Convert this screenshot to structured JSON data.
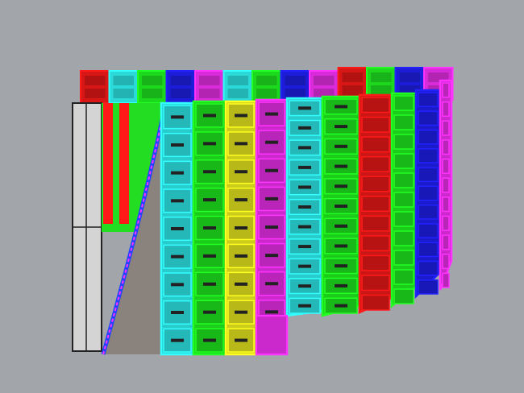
{
  "viewport": {
    "background": "#a2a6aa",
    "panel_colors": {
      "red": "#ff1a1a",
      "cyan": "#33ffff",
      "green": "#22ff22",
      "blue": "#2222ff",
      "magenta": "#ff33ff",
      "yellow": "#ffff22",
      "gray": "#d4d4d4",
      "surface": "#8a827c"
    },
    "back_row_colors": [
      "red",
      "cyan",
      "green",
      "blue",
      "magenta",
      "cyan",
      "green",
      "blue",
      "magenta",
      "red",
      "green",
      "blue",
      "magenta"
    ],
    "front_columns": [
      "cyan",
      "green",
      "yellow",
      "magenta",
      "cyan",
      "green",
      "red",
      "green",
      "blue",
      "magenta"
    ]
  }
}
